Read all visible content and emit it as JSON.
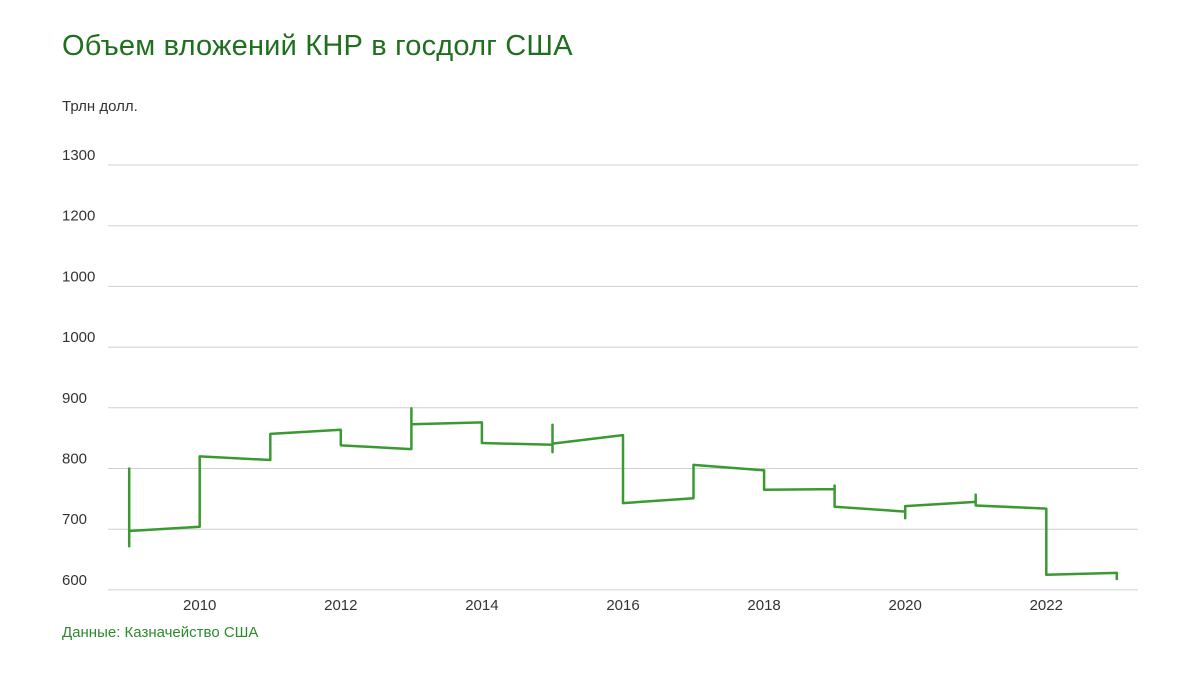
{
  "header": {
    "title": "Объем вложений КНР в госдолг США"
  },
  "axis_note": {
    "unit": "Трлн долл."
  },
  "footer": {
    "source": "Данные: Казначейство США"
  },
  "colors": {
    "title": "#1e6f1e",
    "line": "#3a9a32",
    "grid": "#d0d0d0"
  },
  "chart_data": {
    "type": "line",
    "title": "Объем вложений КНР в госдолг США",
    "xlabel": "",
    "ylabel": "Трлн долл.",
    "grid": true,
    "xlim": [
      2008.7,
      2023.3
    ],
    "x_ticks": [
      2010,
      2012,
      2014,
      2016,
      2018,
      2020,
      2022
    ],
    "x_tick_labels": [
      "2010",
      "2012",
      "2014",
      "2016",
      "2018",
      "2020",
      "2022"
    ],
    "y_tick_labels": [
      "1300",
      "1200",
      "1000",
      "1000",
      "900",
      "800",
      "700",
      "600"
    ],
    "ylim_index": [
      0,
      7
    ],
    "series": [
      {
        "name": "Объем вложений КНР",
        "x": [
          2009.0,
          2009.0,
          2009.0,
          2009.0,
          2010.0,
          2010.0,
          2010.0,
          2010.0,
          2011.0,
          2011.0,
          2011.0,
          2011.0,
          2012.0,
          2012.0,
          2012.0,
          2013.0,
          2013.0,
          2013.0,
          2013.0,
          2014.0,
          2014.0,
          2014.0,
          2015.0,
          2015.0,
          2015.0,
          2015.0,
          2016.0,
          2016.0,
          2016.0,
          2016.0,
          2017.0,
          2017.0,
          2017.0,
          2018.0,
          2018.0,
          2018.0,
          2018.0,
          2019.0,
          2019.0,
          2019.0,
          2019.0,
          2020.0,
          2020.0,
          2020.0,
          2020.0,
          2021.0,
          2021.0,
          2021.0,
          2022.0,
          2022.0,
          2022.0,
          2023.0,
          2023.0
        ],
        "values": [
          6.28,
          5.0,
          6.03,
          6.03,
          5.96,
          5.68,
          5.8,
          4.8,
          4.86,
          4.69,
          4.45,
          4.43,
          4.36,
          4.46,
          4.62,
          4.68,
          4.01,
          4.15,
          4.27,
          4.24,
          4.45,
          4.58,
          4.61,
          4.28,
          4.73,
          4.59,
          4.45,
          4.57,
          4.71,
          5.57,
          5.49,
          4.98,
          4.94,
          5.03,
          5.13,
          5.1,
          5.35,
          5.34,
          5.28,
          5.56,
          5.63,
          5.71,
          5.82,
          5.67,
          5.62,
          5.55,
          5.43,
          5.61,
          5.66,
          6.71,
          6.75,
          6.72,
          6.82
        ]
      }
    ]
  }
}
